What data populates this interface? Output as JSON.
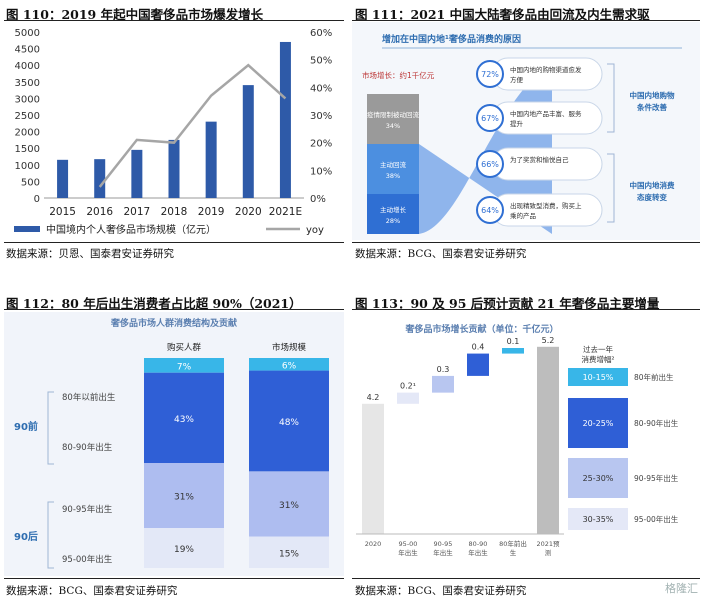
{
  "figures": {
    "fig110_title": "图 110：2019 年起中国奢侈品市场爆发增长",
    "fig111_title": "图 111：2021 中国大陆奢侈品由回流及内生需求驱",
    "fig112_title": "图 112：80 年后出生消费者占比超 90%（2021）",
    "fig113_title": "图 113：90 及 95 后预计贡献 21 年奢侈品主要增量",
    "src110": "数据来源：贝恩、国泰君安证券研究",
    "src111": "数据来源：BCG、国泰君安证券研究",
    "src112": "数据来源：BCG、国泰君安证券研究",
    "src113": "数据来源：BCG、国泰君安证券研究"
  },
  "chart_data": [
    {
      "type": "bar",
      "categories": [
        "2015",
        "2016",
        "2017",
        "2018",
        "2019",
        "2020",
        "2021E"
      ],
      "series": [
        {
          "name": "中国境内个人奢侈品市场规模（亿元）",
          "type": "bar",
          "axis": "left",
          "values": [
            1150,
            1170,
            1450,
            1750,
            2300,
            3400,
            4700
          ]
        },
        {
          "name": "yoy",
          "type": "line",
          "axis": "right",
          "values": [
            null,
            4,
            21,
            20,
            37,
            48,
            36
          ]
        }
      ],
      "yticks_left": [
        "0",
        "500",
        "1000",
        "1500",
        "2000",
        "2500",
        "3000",
        "3500",
        "4000",
        "4500",
        "5000"
      ],
      "yticks_right": [
        "0%",
        "10%",
        "20%",
        "30%",
        "40%",
        "50%",
        "60%"
      ],
      "ylim": [
        0,
        5000
      ],
      "y2lim": [
        0,
        60
      ],
      "colors": {
        "bar": "#2e5aa8",
        "line": "#a6a6a6"
      }
    },
    {
      "type": "table",
      "panel_title": "增加在中国内地¹奢侈品消费的原因",
      "growth_label": "市场增长：约1千亿元",
      "stack": [
        {
          "label": "疫情限制被动回流",
          "value": "34%"
        },
        {
          "label": "主动回流",
          "value": "38%"
        },
        {
          "label": "主动增长",
          "value": "28%"
        }
      ],
      "reasons": [
        {
          "pct": "72%",
          "text": "中国内地的购物渠道愈发方便"
        },
        {
          "pct": "67%",
          "text": "中国内地产品丰富、服务提升"
        },
        {
          "pct": "66%",
          "text": "为了奖赏和愉悦自己"
        },
        {
          "pct": "64%",
          "text": "出现精致型消费，购买上乘的产品"
        }
      ],
      "groups": [
        "中国内地购物条件改善",
        "中国内地消费态度转变"
      ]
    },
    {
      "type": "bar",
      "panel_title": "奢侈品市场人群消费结构及贡献",
      "categories": [
        "购买人群",
        "市场规模"
      ],
      "series": [
        {
          "name": "80年以前出生",
          "values": [
            7,
            6
          ]
        },
        {
          "name": "80-90年出生",
          "values": [
            43,
            48
          ]
        },
        {
          "name": "90-95年出生",
          "values": [
            31,
            31
          ]
        },
        {
          "name": "95-00年出生",
          "values": [
            19,
            15
          ]
        }
      ],
      "labels": [
        [
          "7%",
          "43%",
          "31%",
          "19%"
        ],
        [
          "6%",
          "48%",
          "31%",
          "15%"
        ]
      ],
      "group_labels": [
        "90前",
        "90后"
      ]
    },
    {
      "type": "bar",
      "panel_title": "奢侈品市场增长贡献（单位：千亿元）",
      "categories": [
        "2020",
        "95-00年出生",
        "90-95年出生",
        "80-90年出生",
        "80年前出生",
        "2021预测"
      ],
      "values": [
        4.2,
        0.2,
        0.3,
        0.4,
        0.1,
        5.2
      ],
      "value_labels": [
        "4.2",
        "0.2¹",
        "0.3",
        "0.4",
        "0.1",
        "5.2"
      ],
      "legend_header": "过去一年消费增幅²",
      "legend": [
        {
          "range": "10-15%",
          "label": "80年前出生"
        },
        {
          "range": "20-25%",
          "label": "80-90年出生"
        },
        {
          "range": "25-30%",
          "label": "90-95年出生"
        },
        {
          "range": "30-35%",
          "label": "95-00年出生"
        }
      ]
    }
  ],
  "watermark": "格隆汇"
}
